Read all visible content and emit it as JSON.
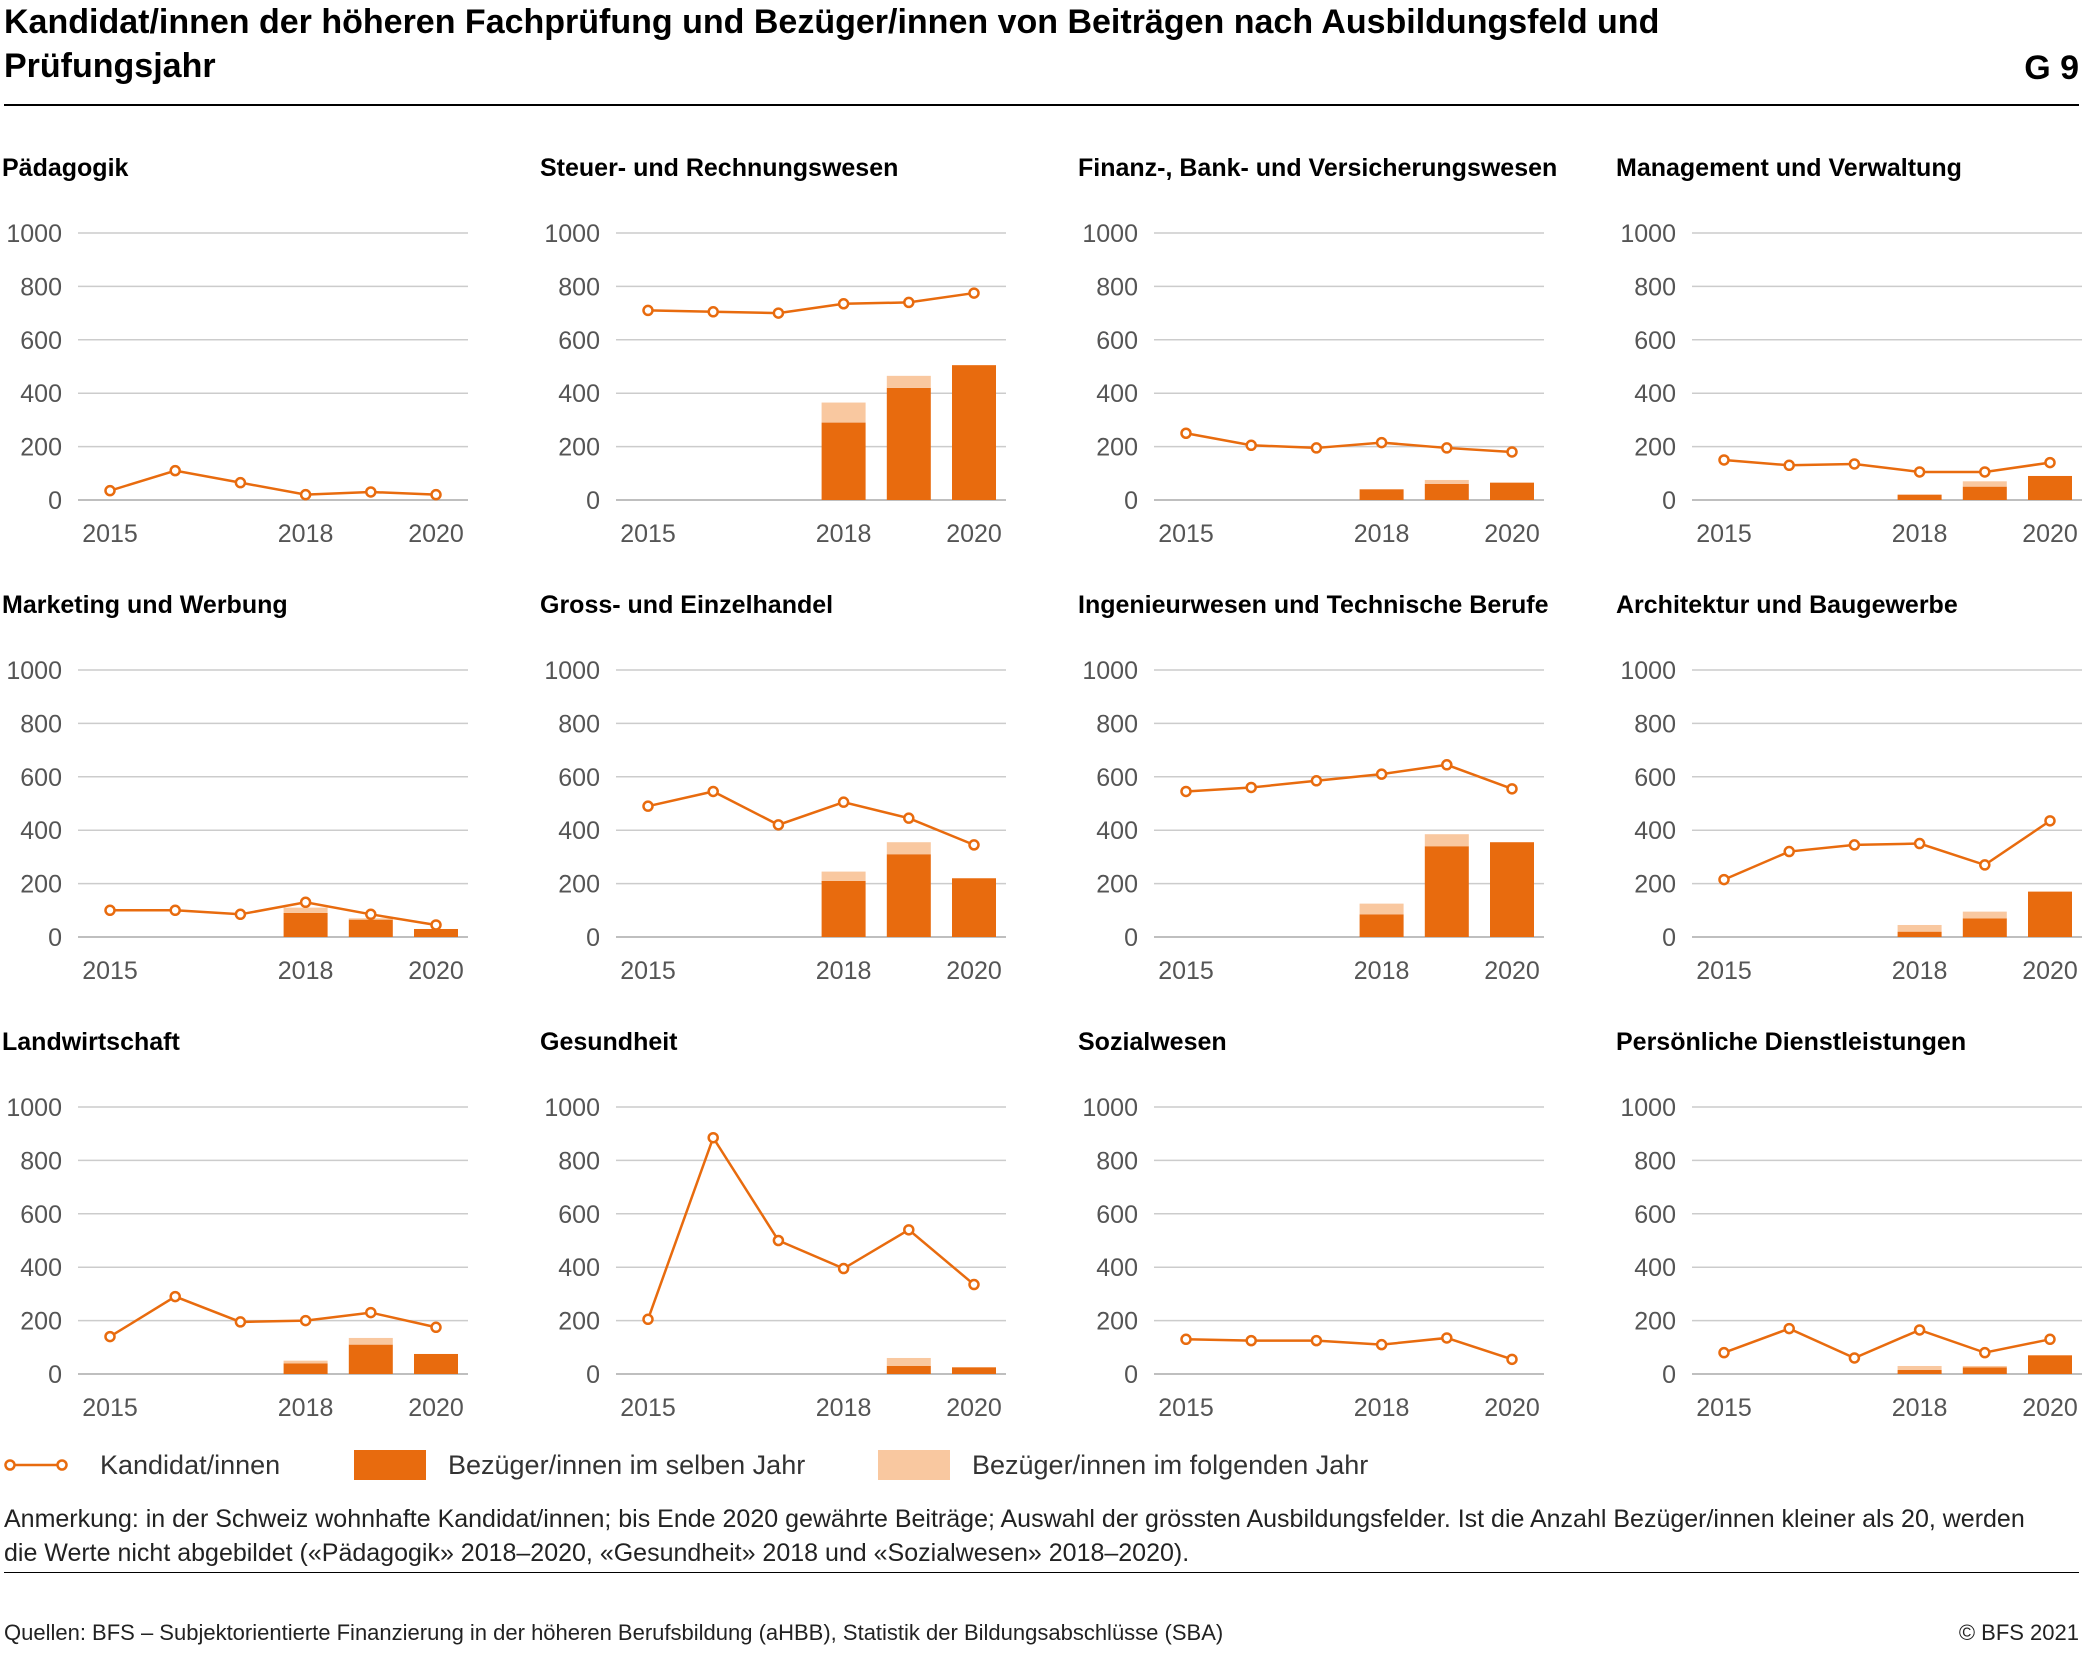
{
  "header": {
    "title": "Kandidat/innen der höheren Fachprüfung und Bezüger/innen von Beiträgen nach Ausbildungsfeld und Prüfungsjahr",
    "code": "G 9"
  },
  "colors": {
    "candidates": "#e86b0e",
    "same_year": "#e86b0e",
    "following_year": "#f9c8a0",
    "grid": "#cccccc",
    "tick_text": "#555555"
  },
  "legend": {
    "candidates": "Kandidat/innen",
    "same_year": "Bezüger/innen im selben Jahr",
    "following_year": "Bezüger/innen im folgenden Jahr"
  },
  "note": "Anmerkung: in der Schweiz wohnhafte Kandidat/innen; bis Ende 2020 gewährte Beiträge; Auswahl der grössten Ausbildungsfelder. Ist die Anzahl Bezüger/innen kleiner als 20, werden die Werte nicht abgebildet («Pädagogik» 2018–2020, «Gesundheit» 2018 und «Sozialwesen» 2018–2020).",
  "source": "Quellen: BFS – Subjektorientierte Finanzierung in der höheren Berufsbildung (aHBB), Statistik der Bildungsabschlüsse (SBA)",
  "copyright": "© BFS 2021",
  "chart_data": [
    {
      "type": "bar+line",
      "title": "Pädagogik",
      "x": [
        2015,
        2016,
        2017,
        2018,
        2019,
        2020
      ],
      "x_tick_labels": [
        "2015",
        "2018",
        "2020"
      ],
      "ylim": [
        0,
        1000
      ],
      "yticks": [
        0,
        200,
        400,
        600,
        800,
        1000
      ],
      "series": [
        {
          "name": "Kandidat/innen",
          "type": "line",
          "values": [
            35,
            110,
            65,
            20,
            30,
            20
          ]
        },
        {
          "name": "Bezüger/innen im selben Jahr",
          "type": "bar",
          "values": [
            null,
            null,
            null,
            null,
            null,
            null
          ]
        },
        {
          "name": "Bezüger/innen im folgenden Jahr",
          "type": "bar",
          "values": [
            null,
            null,
            null,
            null,
            null,
            null
          ]
        }
      ]
    },
    {
      "type": "bar+line",
      "title": "Steuer- und Rechnungswesen",
      "x": [
        2015,
        2016,
        2017,
        2018,
        2019,
        2020
      ],
      "x_tick_labels": [
        "2015",
        "2018",
        "2020"
      ],
      "ylim": [
        0,
        1000
      ],
      "yticks": [
        0,
        200,
        400,
        600,
        800,
        1000
      ],
      "series": [
        {
          "name": "Kandidat/innen",
          "type": "line",
          "values": [
            710,
            705,
            700,
            735,
            740,
            775
          ]
        },
        {
          "name": "Bezüger/innen im selben Jahr",
          "type": "bar",
          "values": [
            null,
            null,
            null,
            290,
            420,
            505
          ]
        },
        {
          "name": "Bezüger/innen im folgenden Jahr",
          "type": "bar",
          "values": [
            null,
            null,
            null,
            75,
            45,
            0
          ]
        }
      ]
    },
    {
      "type": "bar+line",
      "title": "Finanz-, Bank- und Versicherungswesen",
      "x": [
        2015,
        2016,
        2017,
        2018,
        2019,
        2020
      ],
      "x_tick_labels": [
        "2015",
        "2018",
        "2020"
      ],
      "ylim": [
        0,
        1000
      ],
      "yticks": [
        0,
        200,
        400,
        600,
        800,
        1000
      ],
      "series": [
        {
          "name": "Kandidat/innen",
          "type": "line",
          "values": [
            250,
            205,
            195,
            215,
            195,
            180
          ]
        },
        {
          "name": "Bezüger/innen im selben Jahr",
          "type": "bar",
          "values": [
            null,
            null,
            null,
            40,
            60,
            65
          ]
        },
        {
          "name": "Bezüger/innen im folgenden Jahr",
          "type": "bar",
          "values": [
            null,
            null,
            null,
            0,
            15,
            0
          ]
        }
      ]
    },
    {
      "type": "bar+line",
      "title": "Management und Verwaltung",
      "x": [
        2015,
        2016,
        2017,
        2018,
        2019,
        2020
      ],
      "x_tick_labels": [
        "2015",
        "2018",
        "2020"
      ],
      "ylim": [
        0,
        1000
      ],
      "yticks": [
        0,
        200,
        400,
        600,
        800,
        1000
      ],
      "series": [
        {
          "name": "Kandidat/innen",
          "type": "line",
          "values": [
            150,
            130,
            135,
            105,
            105,
            140
          ]
        },
        {
          "name": "Bezüger/innen im selben Jahr",
          "type": "bar",
          "values": [
            null,
            null,
            null,
            20,
            50,
            90
          ]
        },
        {
          "name": "Bezüger/innen im folgenden Jahr",
          "type": "bar",
          "values": [
            null,
            null,
            null,
            0,
            20,
            0
          ]
        }
      ]
    },
    {
      "type": "bar+line",
      "title": "Marketing und Werbung",
      "x": [
        2015,
        2016,
        2017,
        2018,
        2019,
        2020
      ],
      "x_tick_labels": [
        "2015",
        "2018",
        "2020"
      ],
      "ylim": [
        0,
        1000
      ],
      "yticks": [
        0,
        200,
        400,
        600,
        800,
        1000
      ],
      "series": [
        {
          "name": "Kandidat/innen",
          "type": "line",
          "values": [
            100,
            100,
            85,
            130,
            85,
            45
          ]
        },
        {
          "name": "Bezüger/innen im selben Jahr",
          "type": "bar",
          "values": [
            null,
            null,
            null,
            90,
            65,
            30
          ]
        },
        {
          "name": "Bezüger/innen im folgenden Jahr",
          "type": "bar",
          "values": [
            null,
            null,
            null,
            20,
            5,
            0
          ]
        }
      ]
    },
    {
      "type": "bar+line",
      "title": "Gross- und Einzelhandel",
      "x": [
        2015,
        2016,
        2017,
        2018,
        2019,
        2020
      ],
      "x_tick_labels": [
        "2015",
        "2018",
        "2020"
      ],
      "ylim": [
        0,
        1000
      ],
      "yticks": [
        0,
        200,
        400,
        600,
        800,
        1000
      ],
      "series": [
        {
          "name": "Kandidat/innen",
          "type": "line",
          "values": [
            490,
            545,
            420,
            505,
            445,
            345
          ]
        },
        {
          "name": "Bezüger/innen im selben Jahr",
          "type": "bar",
          "values": [
            null,
            null,
            null,
            210,
            310,
            220
          ]
        },
        {
          "name": "Bezüger/innen im folgenden Jahr",
          "type": "bar",
          "values": [
            null,
            null,
            null,
            35,
            45,
            0
          ]
        }
      ]
    },
    {
      "type": "bar+line",
      "title": "Ingenieurwesen und Technische Berufe",
      "x": [
        2015,
        2016,
        2017,
        2018,
        2019,
        2020
      ],
      "x_tick_labels": [
        "2015",
        "2018",
        "2020"
      ],
      "ylim": [
        0,
        1000
      ],
      "yticks": [
        0,
        200,
        400,
        600,
        800,
        1000
      ],
      "series": [
        {
          "name": "Kandidat/innen",
          "type": "line",
          "values": [
            545,
            560,
            585,
            610,
            645,
            555
          ]
        },
        {
          "name": "Bezüger/innen im selben Jahr",
          "type": "bar",
          "values": [
            null,
            null,
            null,
            85,
            340,
            355
          ]
        },
        {
          "name": "Bezüger/innen im folgenden Jahr",
          "type": "bar",
          "values": [
            null,
            null,
            null,
            40,
            45,
            0
          ]
        }
      ]
    },
    {
      "type": "bar+line",
      "title": "Architektur und Baugewerbe",
      "x": [
        2015,
        2016,
        2017,
        2018,
        2019,
        2020
      ],
      "x_tick_labels": [
        "2015",
        "2018",
        "2020"
      ],
      "ylim": [
        0,
        1000
      ],
      "yticks": [
        0,
        200,
        400,
        600,
        800,
        1000
      ],
      "series": [
        {
          "name": "Kandidat/innen",
          "type": "line",
          "values": [
            215,
            320,
            345,
            350,
            270,
            435
          ]
        },
        {
          "name": "Bezüger/innen im selben Jahr",
          "type": "bar",
          "values": [
            null,
            null,
            null,
            20,
            70,
            170
          ]
        },
        {
          "name": "Bezüger/innen im folgenden Jahr",
          "type": "bar",
          "values": [
            null,
            null,
            null,
            25,
            25,
            0
          ]
        }
      ]
    },
    {
      "type": "bar+line",
      "title": "Landwirtschaft",
      "x": [
        2015,
        2016,
        2017,
        2018,
        2019,
        2020
      ],
      "x_tick_labels": [
        "2015",
        "2018",
        "2020"
      ],
      "ylim": [
        0,
        1000
      ],
      "yticks": [
        0,
        200,
        400,
        600,
        800,
        1000
      ],
      "series": [
        {
          "name": "Kandidat/innen",
          "type": "line",
          "values": [
            140,
            290,
            195,
            200,
            230,
            175
          ]
        },
        {
          "name": "Bezüger/innen im selben Jahr",
          "type": "bar",
          "values": [
            null,
            null,
            null,
            40,
            110,
            75
          ]
        },
        {
          "name": "Bezüger/innen im folgenden Jahr",
          "type": "bar",
          "values": [
            null,
            null,
            null,
            10,
            25,
            0
          ]
        }
      ]
    },
    {
      "type": "bar+line",
      "title": "Gesundheit",
      "x": [
        2015,
        2016,
        2017,
        2018,
        2019,
        2020
      ],
      "x_tick_labels": [
        "2015",
        "2018",
        "2020"
      ],
      "ylim": [
        0,
        1000
      ],
      "yticks": [
        0,
        200,
        400,
        600,
        800,
        1000
      ],
      "series": [
        {
          "name": "Kandidat/innen",
          "type": "line",
          "values": [
            205,
            885,
            500,
            395,
            540,
            335
          ]
        },
        {
          "name": "Bezüger/innen im selben Jahr",
          "type": "bar",
          "values": [
            null,
            null,
            null,
            null,
            30,
            25
          ]
        },
        {
          "name": "Bezüger/innen im folgenden Jahr",
          "type": "bar",
          "values": [
            null,
            null,
            null,
            null,
            30,
            0
          ]
        }
      ]
    },
    {
      "type": "bar+line",
      "title": "Sozialwesen",
      "x": [
        2015,
        2016,
        2017,
        2018,
        2019,
        2020
      ],
      "x_tick_labels": [
        "2015",
        "2018",
        "2020"
      ],
      "ylim": [
        0,
        1000
      ],
      "yticks": [
        0,
        200,
        400,
        600,
        800,
        1000
      ],
      "series": [
        {
          "name": "Kandidat/innen",
          "type": "line",
          "values": [
            130,
            125,
            125,
            110,
            135,
            55
          ]
        },
        {
          "name": "Bezüger/innen im selben Jahr",
          "type": "bar",
          "values": [
            null,
            null,
            null,
            null,
            null,
            null
          ]
        },
        {
          "name": "Bezüger/innen im folgenden Jahr",
          "type": "bar",
          "values": [
            null,
            null,
            null,
            null,
            null,
            null
          ]
        }
      ]
    },
    {
      "type": "bar+line",
      "title": "Persönliche Dienstleistungen",
      "x": [
        2015,
        2016,
        2017,
        2018,
        2019,
        2020
      ],
      "x_tick_labels": [
        "2015",
        "2018",
        "2020"
      ],
      "ylim": [
        0,
        1000
      ],
      "yticks": [
        0,
        200,
        400,
        600,
        800,
        1000
      ],
      "series": [
        {
          "name": "Kandidat/innen",
          "type": "line",
          "values": [
            80,
            170,
            60,
            165,
            80,
            130
          ]
        },
        {
          "name": "Bezüger/innen im selben Jahr",
          "type": "bar",
          "values": [
            null,
            null,
            null,
            15,
            25,
            70
          ]
        },
        {
          "name": "Bezüger/innen im folgenden Jahr",
          "type": "bar",
          "values": [
            null,
            null,
            null,
            15,
            5,
            0
          ]
        }
      ]
    }
  ]
}
